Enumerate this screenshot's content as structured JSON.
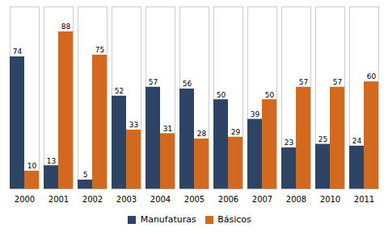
{
  "chart_data": {
    "type": "bar",
    "categories": [
      "2000",
      "2001",
      "2002",
      "2003",
      "2004",
      "2005",
      "2006",
      "2007",
      "2008",
      "2010",
      "2011"
    ],
    "series": [
      {
        "name": "Manufaturas",
        "color": "#2E4464",
        "values": [
          74,
          13,
          5,
          52,
          57,
          56,
          50,
          39,
          23,
          25,
          24
        ]
      },
      {
        "name": "Básicos",
        "color": "#D2691E",
        "values": [
          10,
          88,
          75,
          33,
          31,
          28,
          29,
          50,
          57,
          57,
          60
        ]
      }
    ],
    "ylim": [
      0,
      102
    ],
    "data_labels": true,
    "tick_labels": "x",
    "legend": "bottom",
    "grid": false
  }
}
